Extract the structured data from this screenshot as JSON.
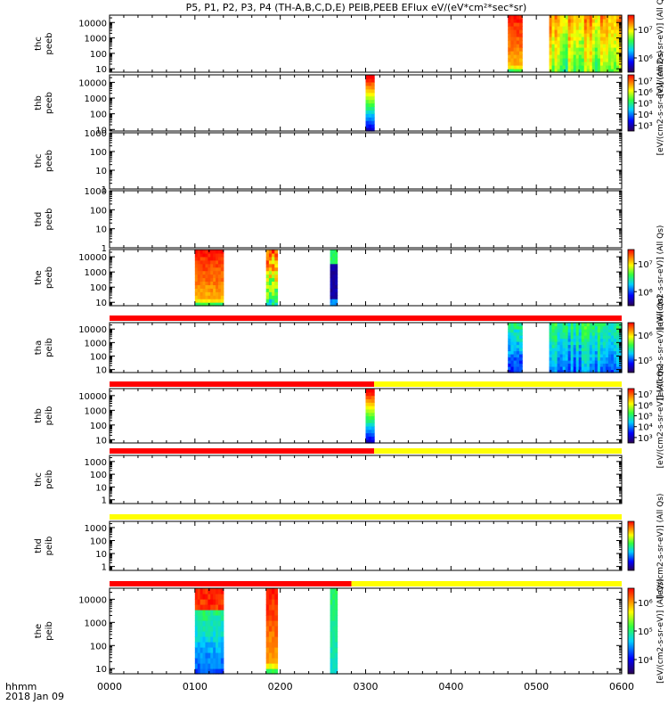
{
  "title": "P5, P1, P2, P3, P4 (TH-A,B,C,D,E) PEIB,PEEB EFlux eV/(eV*cm²*sec*sr)",
  "footer": {
    "time_label": "hhmm",
    "date_label": "2018 Jan 09"
  },
  "colors": {
    "flag_red": "#ff0000",
    "flag_yellow": "#ffff00"
  },
  "chart_data": {
    "type": "heatmap",
    "x_axis": {
      "unit": "hhmm",
      "range": [
        "0000",
        "0600"
      ],
      "ticks": [
        "0000",
        "0100",
        "0200",
        "0300",
        "0400",
        "0500",
        "0600"
      ]
    },
    "panels": [
      {
        "probe_label": "thc",
        "instrument_label": "peeb",
        "ylim": [
          6,
          30000
        ],
        "yticks": [
          {
            "value": 10,
            "label": "10"
          },
          {
            "value": 100,
            "label": "100"
          },
          {
            "value": 1000,
            "label": "1000"
          },
          {
            "value": 10000,
            "label": "10000"
          }
        ],
        "colorbar": {
          "text": "[eV/(cm2-s-sr-eV)] (All Qs)",
          "ticks": [
            "10⁶",
            "10⁷"
          ]
        },
        "flag": null,
        "blocks": [
          {
            "t_start": "0440",
            "t_end": "0450",
            "profile": "red_hot"
          },
          {
            "t_start": "0509",
            "t_end": "0600",
            "profile": "warm_streaky"
          }
        ]
      },
      {
        "probe_label": "thb",
        "instrument_label": "peeb",
        "ylim": [
          8,
          30000
        ],
        "yticks": [
          {
            "value": 10,
            "label": "10"
          },
          {
            "value": 100,
            "label": "100"
          },
          {
            "value": 1000,
            "label": "1000"
          },
          {
            "value": 10000,
            "label": "10000"
          }
        ],
        "colorbar": {
          "text": "[eV/(cm2-s-sr-eV)] (All Qs)",
          "ticks": [
            "10³",
            "10⁴",
            "10⁵",
            "10⁶",
            "10⁷"
          ]
        },
        "flag": null,
        "blocks": [
          {
            "t_start": "0300",
            "t_end": "0306",
            "profile": "blue_to_red"
          }
        ]
      },
      {
        "probe_label": "thc",
        "instrument_label": "peeb",
        "ylim": [
          1,
          1000
        ],
        "yticks": [
          {
            "value": 1,
            "label": "1"
          },
          {
            "value": 10,
            "label": "10"
          },
          {
            "value": 100,
            "label": "100"
          },
          {
            "value": 1000,
            "label": "1000"
          }
        ],
        "colorbar": null,
        "flag": null,
        "blocks": []
      },
      {
        "probe_label": "thd",
        "instrument_label": "peeb",
        "ylim": [
          1,
          1000
        ],
        "yticks": [
          {
            "value": 1,
            "label": "1"
          },
          {
            "value": 10,
            "label": "10"
          },
          {
            "value": 100,
            "label": "100"
          },
          {
            "value": 1000,
            "label": "1000"
          }
        ],
        "colorbar": null,
        "flag": null,
        "blocks": []
      },
      {
        "probe_label": "the",
        "instrument_label": "peeb",
        "ylim": [
          6,
          30000
        ],
        "yticks": [
          {
            "value": 10,
            "label": "10"
          },
          {
            "value": 100,
            "label": "100"
          },
          {
            "value": 1000,
            "label": "1000"
          },
          {
            "value": 10000,
            "label": "10000"
          }
        ],
        "colorbar": {
          "text": "[eV/(cm2-s-sr-eV)] (All Qs)",
          "ticks": [
            "10⁶",
            "10⁷"
          ]
        },
        "flag": null,
        "blocks": [
          {
            "t_start": "0100",
            "t_end": "0120",
            "profile": "red_hot"
          },
          {
            "t_start": "0150",
            "t_end": "0158",
            "profile": "mixed"
          },
          {
            "t_start": "0235",
            "t_end": "0240",
            "profile": "dark_core"
          }
        ]
      },
      {
        "probe_label": "tha",
        "instrument_label": "peib",
        "ylim": [
          6,
          30000
        ],
        "yticks": [
          {
            "value": 10,
            "label": "10"
          },
          {
            "value": 100,
            "label": "100"
          },
          {
            "value": 1000,
            "label": "1000"
          },
          {
            "value": 10000,
            "label": "10000"
          }
        ],
        "colorbar": {
          "text": "[eV/(cm2-s-sr-eV)] (All Qs)",
          "ticks": [
            "10⁵",
            "10⁶"
          ]
        },
        "flag": {
          "segments": [
            {
              "t_start": "0000",
              "t_end": "0600",
              "color": "red"
            }
          ]
        },
        "blocks": [
          {
            "t_start": "0440",
            "t_end": "0450",
            "profile": "cool"
          },
          {
            "t_start": "0509",
            "t_end": "0600",
            "profile": "cool_streaky"
          }
        ]
      },
      {
        "probe_label": "thb",
        "instrument_label": "peib",
        "ylim": [
          6,
          30000
        ],
        "yticks": [
          {
            "value": 10,
            "label": "10"
          },
          {
            "value": 100,
            "label": "100"
          },
          {
            "value": 1000,
            "label": "1000"
          },
          {
            "value": 10000,
            "label": "10000"
          }
        ],
        "colorbar": {
          "text": "[eV/(cm2-s-sr-eV)] (All Qs)",
          "ticks": [
            "10³",
            "10⁴",
            "10⁵",
            "10⁶",
            "10⁷"
          ]
        },
        "flag": {
          "segments": [
            {
              "t_start": "0000",
              "t_end": "0306",
              "color": "red"
            },
            {
              "t_start": "0306",
              "t_end": "0600",
              "color": "yellow"
            }
          ]
        },
        "blocks": [
          {
            "t_start": "0300",
            "t_end": "0306",
            "profile": "blue_to_red"
          }
        ]
      },
      {
        "probe_label": "thc",
        "instrument_label": "peib",
        "ylim": [
          0.5,
          3000
        ],
        "yticks": [
          {
            "value": 1,
            "label": "1"
          },
          {
            "value": 10,
            "label": "10"
          },
          {
            "value": 100,
            "label": "100"
          },
          {
            "value": 1000,
            "label": "1000"
          }
        ],
        "colorbar": null,
        "flag": {
          "segments": [
            {
              "t_start": "0000",
              "t_end": "0306",
              "color": "red"
            },
            {
              "t_start": "0306",
              "t_end": "0600",
              "color": "yellow"
            }
          ]
        },
        "blocks": []
      },
      {
        "probe_label": "thd",
        "instrument_label": "peib",
        "ylim": [
          0.5,
          3000
        ],
        "yticks": [
          {
            "value": 1,
            "label": "1"
          },
          {
            "value": 10,
            "label": "10"
          },
          {
            "value": 100,
            "label": "100"
          },
          {
            "value": 1000,
            "label": "1000"
          }
        ],
        "colorbar": {
          "text": "[eV/(cm2-s-sr-eV)] (All Qs)",
          "ticks": []
        },
        "flag": {
          "segments": [
            {
              "t_start": "0000",
              "t_end": "0600",
              "color": "yellow"
            }
          ]
        },
        "blocks": []
      },
      {
        "probe_label": "the",
        "instrument_label": "peib",
        "ylim": [
          6,
          30000
        ],
        "yticks": [
          {
            "value": 10,
            "label": "10"
          },
          {
            "value": 100,
            "label": "100"
          },
          {
            "value": 1000,
            "label": "1000"
          },
          {
            "value": 10000,
            "label": "10000"
          }
        ],
        "colorbar": {
          "text": "[eV/(cm2-s-sr-eV)] (All Qs)",
          "ticks": [
            "10⁴",
            "10⁵",
            "10⁶"
          ]
        },
        "flag": {
          "segments": [
            {
              "t_start": "0000",
              "t_end": "0250",
              "color": "red"
            },
            {
              "t_start": "0250",
              "t_end": "0600",
              "color": "yellow"
            }
          ]
        },
        "blocks": [
          {
            "t_start": "0100",
            "t_end": "0120",
            "profile": "red_top_blue"
          },
          {
            "t_start": "0150",
            "t_end": "0158",
            "profile": "red_hot"
          },
          {
            "t_start": "0235",
            "t_end": "0240",
            "profile": "cyan"
          }
        ]
      }
    ]
  }
}
